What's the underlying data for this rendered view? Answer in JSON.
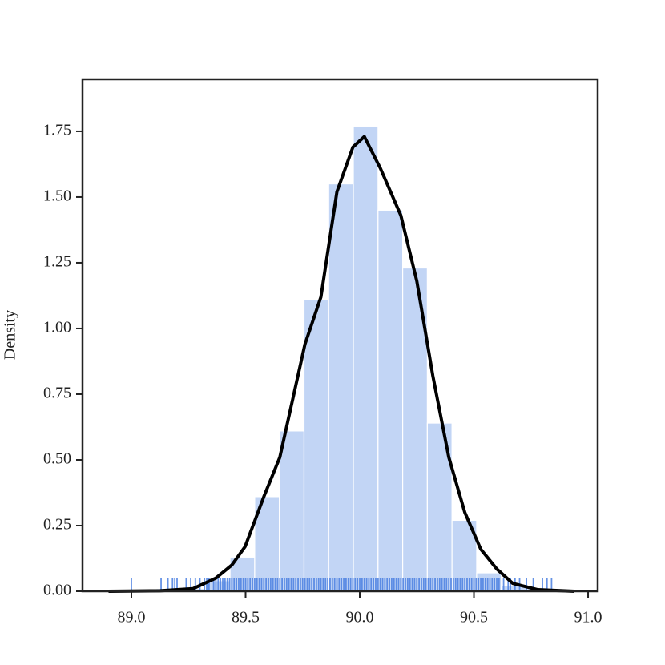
{
  "chart_data": {
    "type": "histogram",
    "ylabel": "Density",
    "bins": [
      89.0,
      89.108,
      89.216,
      89.324,
      89.432,
      89.54,
      89.648,
      89.756,
      89.864,
      89.972,
      90.08,
      90.188,
      90.296,
      90.404,
      90.512,
      90.62,
      90.728,
      90.836
    ],
    "values": [
      0.005,
      0.01,
      0.01,
      0.04,
      0.13,
      0.36,
      0.61,
      1.11,
      1.55,
      1.77,
      1.45,
      1.23,
      0.64,
      0.27,
      0.07,
      0.02,
      0.01
    ],
    "color": "#c2d5f5",
    "kde": {
      "color": "#000000",
      "x": [
        88.9,
        89.126,
        89.27,
        89.37,
        89.44,
        89.498,
        89.58,
        89.65,
        89.76,
        89.83,
        89.9,
        89.97,
        90.02,
        90.09,
        90.18,
        90.25,
        90.32,
        90.39,
        90.46,
        90.53,
        90.6,
        90.67,
        90.78,
        90.94
      ],
      "y": [
        0,
        0.002,
        0.01,
        0.05,
        0.1,
        0.17,
        0.36,
        0.51,
        0.94,
        1.12,
        1.52,
        1.69,
        1.73,
        1.61,
        1.43,
        1.18,
        0.82,
        0.51,
        0.3,
        0.16,
        0.085,
        0.03,
        0.006,
        0
      ]
    },
    "rug": {
      "color": "#4a7fe0",
      "x": [
        89.0,
        89.13,
        89.16,
        89.18,
        89.19,
        89.2,
        89.24,
        89.26,
        89.28,
        89.3,
        89.32,
        89.33,
        89.34,
        89.36,
        89.37,
        89.38,
        89.39,
        89.4,
        89.41,
        89.42,
        89.43,
        89.44,
        89.45,
        89.46,
        89.47,
        89.48,
        89.49,
        89.5,
        89.51,
        89.52,
        89.53,
        89.54,
        89.55,
        89.56,
        89.57,
        89.58,
        89.59,
        89.6,
        89.61,
        89.62,
        89.63,
        89.64,
        89.65,
        89.66,
        89.67,
        89.68,
        89.69,
        89.7,
        89.71,
        89.72,
        89.73,
        89.74,
        89.75,
        89.76,
        89.77,
        89.78,
        89.79,
        89.8,
        89.81,
        89.82,
        89.83,
        89.84,
        89.85,
        89.86,
        89.87,
        89.88,
        89.89,
        89.9,
        89.91,
        89.92,
        89.93,
        89.94,
        89.95,
        89.96,
        89.97,
        89.98,
        89.99,
        90.0,
        90.01,
        90.02,
        90.03,
        90.04,
        90.05,
        90.06,
        90.07,
        90.08,
        90.09,
        90.1,
        90.11,
        90.12,
        90.13,
        90.14,
        90.15,
        90.16,
        90.17,
        90.18,
        90.19,
        90.2,
        90.21,
        90.22,
        90.23,
        90.24,
        90.25,
        90.26,
        90.27,
        90.28,
        90.29,
        90.3,
        90.31,
        90.32,
        90.33,
        90.34,
        90.35,
        90.36,
        90.37,
        90.38,
        90.39,
        90.4,
        90.41,
        90.42,
        90.43,
        90.44,
        90.45,
        90.46,
        90.47,
        90.48,
        90.49,
        90.5,
        90.51,
        90.52,
        90.53,
        90.54,
        90.55,
        90.56,
        90.57,
        90.58,
        90.59,
        90.6,
        90.61,
        90.63,
        90.65,
        90.66,
        90.68,
        90.7,
        90.73,
        90.76,
        90.8,
        90.82,
        90.84
      ]
    },
    "xlim": [
      88.786,
      91.042
    ],
    "ylim": [
      0,
      1.948
    ],
    "xticks": [
      {
        "value": 89,
        "label": "89.0"
      },
      {
        "value": 89.5,
        "label": "89.5"
      },
      {
        "value": 90,
        "label": "90.0"
      },
      {
        "value": 90.5,
        "label": "90.5"
      },
      {
        "value": 91,
        "label": "91.0"
      }
    ],
    "yticks": [
      {
        "value": 0,
        "label": "0.00"
      },
      {
        "value": 0.25,
        "label": "0.25"
      },
      {
        "value": 0.5,
        "label": "0.50"
      },
      {
        "value": 0.75,
        "label": "0.75"
      },
      {
        "value": 1,
        "label": "1.00"
      },
      {
        "value": 1.25,
        "label": "1.25"
      },
      {
        "value": 1.5,
        "label": "1.50"
      },
      {
        "value": 1.75,
        "label": "1.75"
      }
    ]
  }
}
